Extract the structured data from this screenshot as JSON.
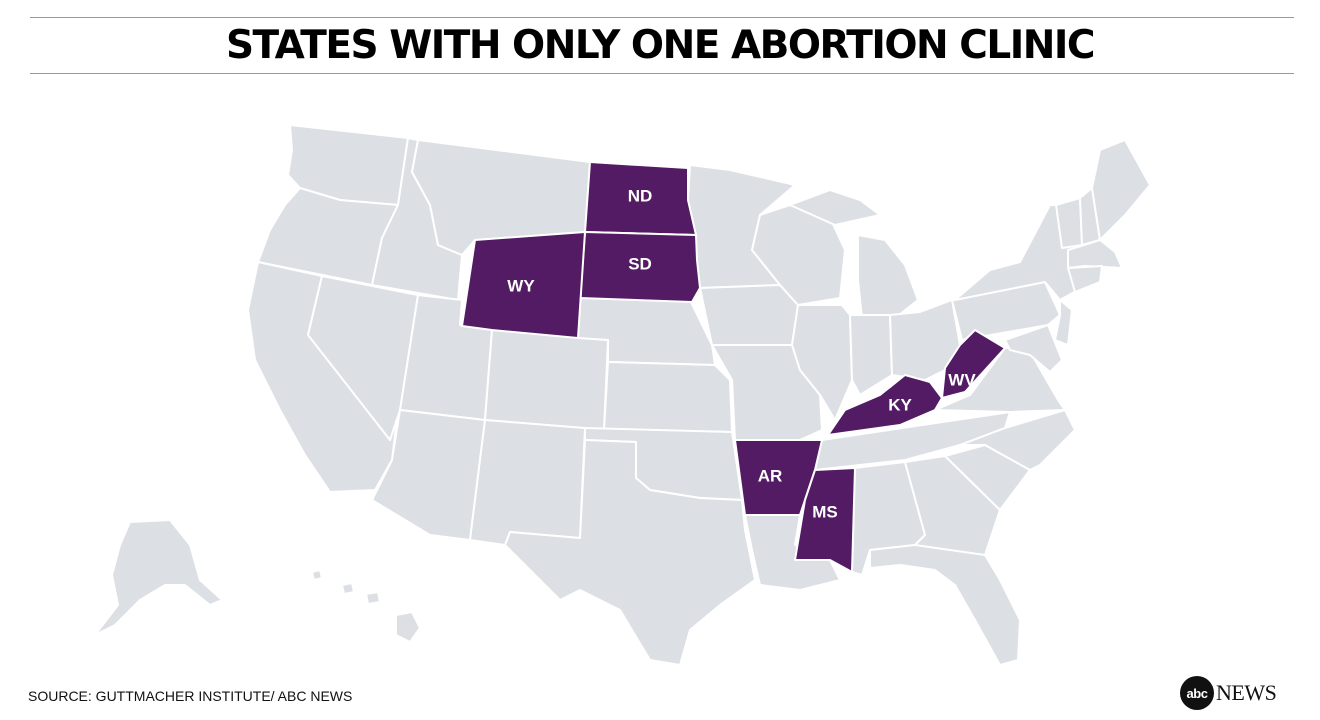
{
  "title": "STATES WITH ONLY ONE ABORTION CLINIC",
  "source": "SOURCE: GUTTMACHER INSTITUTE/ ABC NEWS",
  "logo": {
    "mark": "abc",
    "word": "NEWS"
  },
  "colors": {
    "highlight": "#531b63",
    "base": "#dcdfe3",
    "border": "#ffffff"
  },
  "highlighted_states": [
    {
      "abbr": "ND"
    },
    {
      "abbr": "SD"
    },
    {
      "abbr": "WY"
    },
    {
      "abbr": "AR"
    },
    {
      "abbr": "MS"
    },
    {
      "abbr": "KY"
    },
    {
      "abbr": "WV"
    }
  ]
}
